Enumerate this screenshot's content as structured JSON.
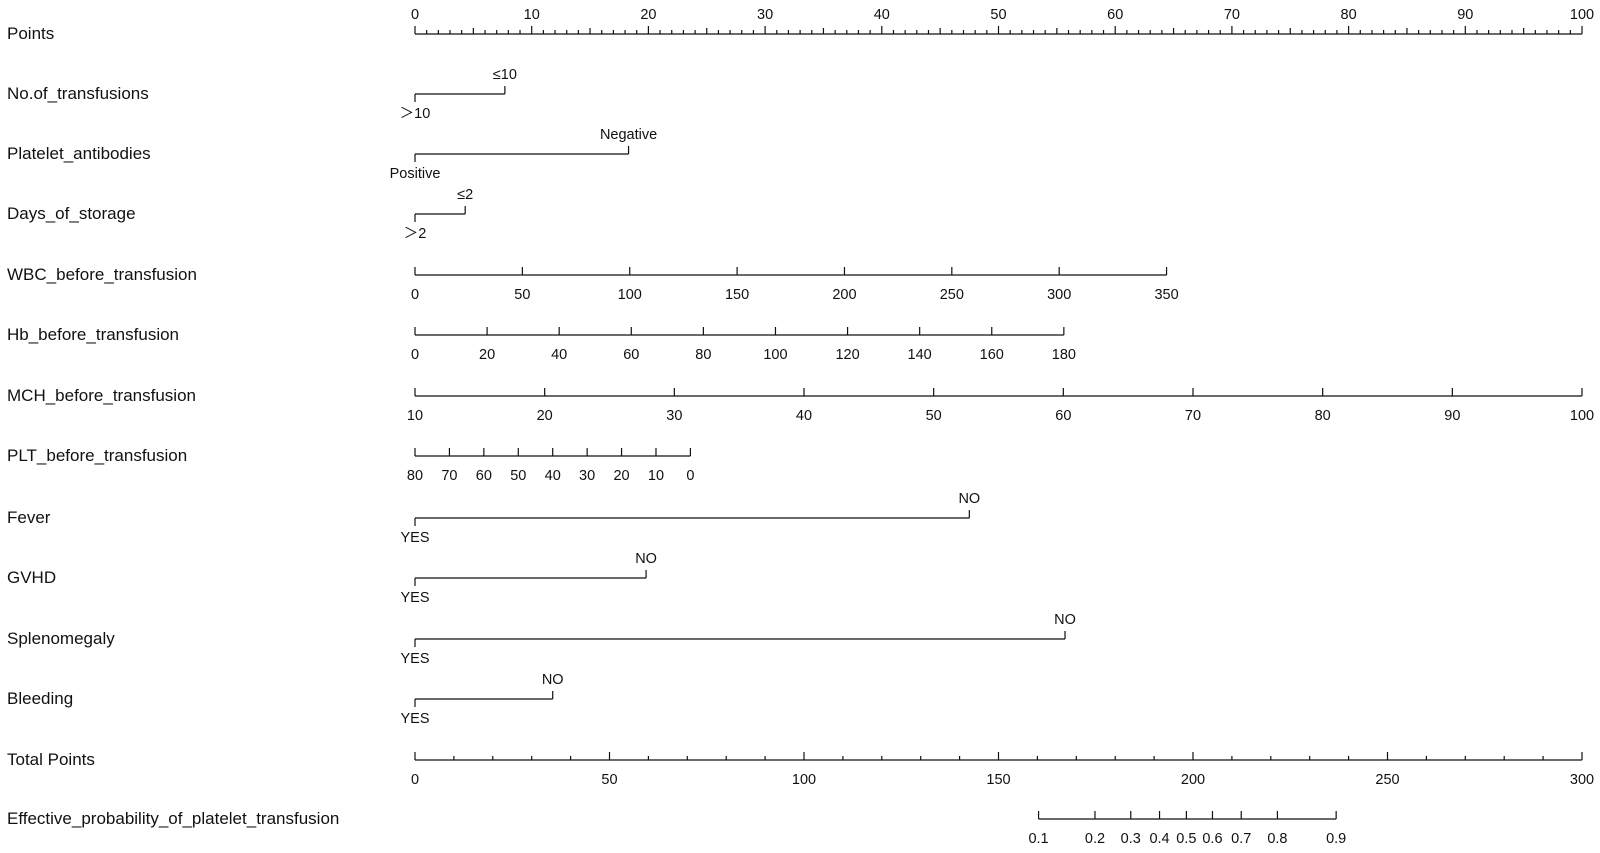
{
  "chart_data": {
    "type": "nomogram",
    "rows": [
      {
        "kind": "points",
        "label": "Points",
        "ticks": [
          0,
          10,
          20,
          30,
          40,
          50,
          60,
          70,
          80,
          90,
          100
        ],
        "minor_step": 1
      },
      {
        "kind": "categorical",
        "label": "No.of_transfusions",
        "levels": [
          {
            "name": "≤10",
            "points": 7.7
          },
          {
            "name": "＞10",
            "points": 0
          }
        ]
      },
      {
        "kind": "categorical",
        "label": "Platelet_antibodies",
        "levels": [
          {
            "name": "Negative",
            "points": 18.3
          },
          {
            "name": "Positive",
            "points": 0
          }
        ]
      },
      {
        "kind": "categorical",
        "label": "Days_of_storage",
        "levels": [
          {
            "name": "≤2",
            "points": 4.3
          },
          {
            "name": "＞2",
            "points": 0
          }
        ]
      },
      {
        "kind": "continuous",
        "label": "WBC_before_transfusion",
        "ticks": [
          0,
          50,
          100,
          150,
          200,
          250,
          300,
          350
        ],
        "range": [
          0,
          350
        ],
        "points_range": [
          0,
          64.4
        ]
      },
      {
        "kind": "continuous",
        "label": "Hb_before_transfusion",
        "ticks": [
          0,
          20,
          40,
          60,
          80,
          100,
          120,
          140,
          160,
          180
        ],
        "range": [
          0,
          180
        ],
        "points_range": [
          0,
          55.6
        ]
      },
      {
        "kind": "continuous",
        "label": "MCH_before_transfusion",
        "ticks": [
          10,
          20,
          30,
          40,
          50,
          60,
          70,
          80,
          90,
          100
        ],
        "range": [
          10,
          100
        ],
        "points_range": [
          0,
          100
        ]
      },
      {
        "kind": "continuous",
        "label": "PLT_before_transfusion",
        "ticks": [
          80,
          70,
          60,
          50,
          40,
          30,
          20,
          10,
          0
        ],
        "range": [
          80,
          0
        ],
        "points_range": [
          0,
          23.6
        ]
      },
      {
        "kind": "categorical",
        "label": "Fever",
        "levels": [
          {
            "name": "NO",
            "points": 47.5
          },
          {
            "name": "YES",
            "points": 0
          }
        ]
      },
      {
        "kind": "categorical",
        "label": "GVHD",
        "levels": [
          {
            "name": "NO",
            "points": 19.8
          },
          {
            "name": "YES",
            "points": 0
          }
        ]
      },
      {
        "kind": "categorical",
        "label": "Splenomegaly",
        "levels": [
          {
            "name": "NO",
            "points": 55.7
          },
          {
            "name": "YES",
            "points": 0
          }
        ]
      },
      {
        "kind": "categorical",
        "label": "Bleeding",
        "levels": [
          {
            "name": "NO",
            "points": 11.8
          },
          {
            "name": "YES",
            "points": 0
          }
        ]
      },
      {
        "kind": "points",
        "label": "Total Points",
        "ticks": [
          0,
          50,
          100,
          150,
          200,
          250,
          300
        ],
        "minor_step": 10
      },
      {
        "kind": "probability",
        "label": "Effective_probability_of_platelet_transfusion",
        "ticks": [
          {
            "label": "0.1",
            "total_points": 160.3
          },
          {
            "label": "0.2",
            "total_points": 174.8
          },
          {
            "label": "0.3",
            "total_points": 184.0
          },
          {
            "label": "0.4",
            "total_points": 191.4
          },
          {
            "label": "0.5",
            "total_points": 198.3
          },
          {
            "label": "0.6",
            "total_points": 205.0
          },
          {
            "label": "0.7",
            "total_points": 212.4
          },
          {
            "label": "0.8",
            "total_points": 221.7
          },
          {
            "label": "0.9",
            "total_points": 236.8
          }
        ]
      }
    ]
  }
}
